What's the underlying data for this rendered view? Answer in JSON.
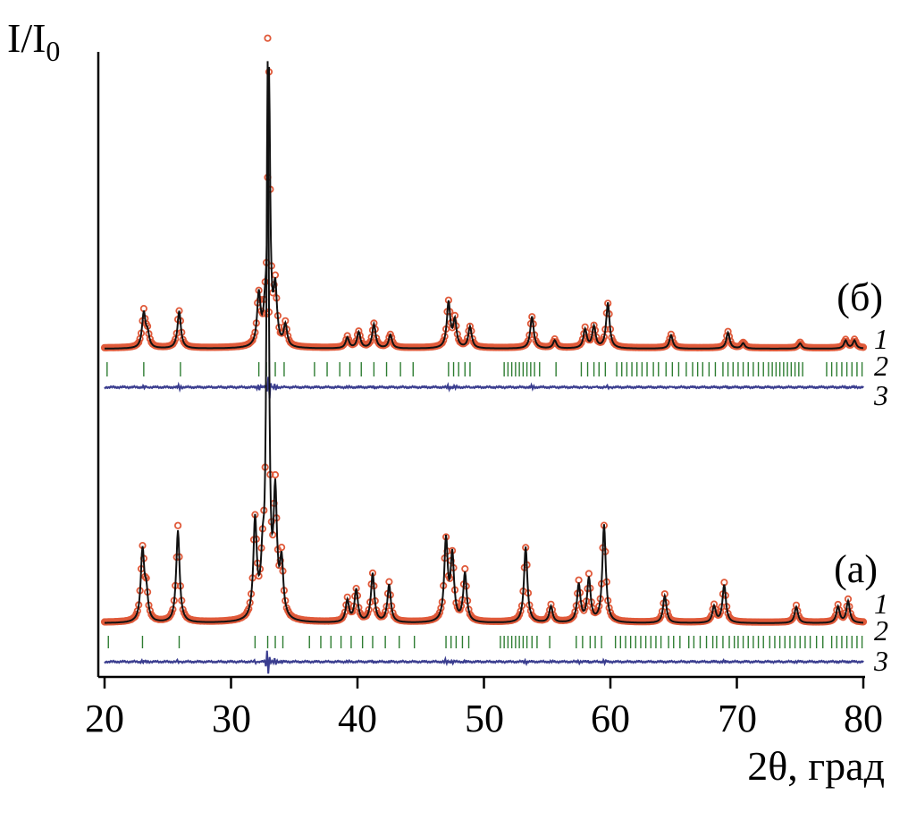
{
  "chart_data": {
    "type": "line",
    "xlabel": "2θ, град",
    "ylabel_main": "I/I",
    "ylabel_sub": "0",
    "xlim": [
      20,
      80
    ],
    "xticks": [
      "20",
      "30",
      "40",
      "50",
      "60",
      "70",
      "80"
    ],
    "xtick_values": [
      20,
      30,
      40,
      50,
      60,
      70,
      80
    ],
    "curve_labels": [
      "1",
      "2",
      "3"
    ],
    "colors": {
      "observed": "#e05a3a",
      "calculated": "#111111",
      "bragg": "#2e7d32",
      "difference": "#3a3d8f",
      "axis": "#000000"
    },
    "panels": [
      {
        "label": "(а)",
        "peaks": [
          {
            "x": 23.0,
            "h": 0.13
          },
          {
            "x": 23.3,
            "h": 0.05
          },
          {
            "x": 25.8,
            "h": 0.17
          },
          {
            "x": 31.9,
            "h": 0.18
          },
          {
            "x": 32.5,
            "h": 0.09
          },
          {
            "x": 32.9,
            "h": 1.0
          },
          {
            "x": 33.5,
            "h": 0.22
          },
          {
            "x": 34.0,
            "h": 0.1
          },
          {
            "x": 39.2,
            "h": 0.04
          },
          {
            "x": 39.9,
            "h": 0.06
          },
          {
            "x": 41.2,
            "h": 0.09
          },
          {
            "x": 42.5,
            "h": 0.07
          },
          {
            "x": 47.0,
            "h": 0.15
          },
          {
            "x": 47.5,
            "h": 0.12
          },
          {
            "x": 48.5,
            "h": 0.09
          },
          {
            "x": 53.3,
            "h": 0.14
          },
          {
            "x": 55.3,
            "h": 0.03
          },
          {
            "x": 57.5,
            "h": 0.07
          },
          {
            "x": 58.3,
            "h": 0.08
          },
          {
            "x": 59.5,
            "h": 0.18
          },
          {
            "x": 64.3,
            "h": 0.05
          },
          {
            "x": 68.2,
            "h": 0.03
          },
          {
            "x": 69.0,
            "h": 0.07
          },
          {
            "x": 74.7,
            "h": 0.03
          },
          {
            "x": 78.0,
            "h": 0.03
          },
          {
            "x": 78.8,
            "h": 0.04
          }
        ],
        "bragg_positions": [
          20.3,
          23.0,
          25.9,
          31.9,
          32.9,
          33.5,
          34.1,
          36.2,
          37.1,
          37.9,
          38.7,
          39.5,
          40.4,
          41.2,
          42.2,
          43.3,
          44.5,
          47.0,
          47.4,
          47.8,
          48.3,
          48.8,
          51.3,
          51.6,
          51.9,
          52.2,
          52.5,
          52.8,
          53.1,
          53.4,
          53.8,
          54.2,
          55.2,
          57.3,
          57.8,
          58.4,
          58.8,
          59.3,
          60.4,
          60.8,
          61.2,
          61.6,
          62.0,
          62.4,
          62.8,
          63.2,
          63.6,
          64.0,
          64.6,
          65.0,
          65.5,
          66.2,
          66.6,
          67.1,
          67.6,
          68.1,
          68.4,
          68.9,
          69.4,
          69.8,
          70.1,
          70.5,
          70.9,
          71.3,
          71.7,
          72.1,
          72.6,
          73.0,
          73.4,
          73.8,
          74.2,
          74.6,
          75.0,
          75.4,
          75.8,
          76.3,
          76.8,
          77.5,
          77.9,
          78.3,
          78.7,
          79.1,
          79.5,
          79.9
        ]
      },
      {
        "label": "(б)",
        "peaks": [
          {
            "x": 23.1,
            "h": 0.13
          },
          {
            "x": 23.4,
            "h": 0.05
          },
          {
            "x": 25.9,
            "h": 0.14
          },
          {
            "x": 32.2,
            "h": 0.19
          },
          {
            "x": 32.7,
            "h": 0.1
          },
          {
            "x": 33.0,
            "h": 1.0
          },
          {
            "x": 33.5,
            "h": 0.21
          },
          {
            "x": 34.3,
            "h": 0.08
          },
          {
            "x": 39.2,
            "h": 0.04
          },
          {
            "x": 40.1,
            "h": 0.06
          },
          {
            "x": 41.3,
            "h": 0.09
          },
          {
            "x": 42.6,
            "h": 0.05
          },
          {
            "x": 47.2,
            "h": 0.17
          },
          {
            "x": 47.7,
            "h": 0.1
          },
          {
            "x": 48.9,
            "h": 0.08
          },
          {
            "x": 53.8,
            "h": 0.12
          },
          {
            "x": 55.6,
            "h": 0.03
          },
          {
            "x": 58.0,
            "h": 0.07
          },
          {
            "x": 58.7,
            "h": 0.08
          },
          {
            "x": 59.8,
            "h": 0.17
          },
          {
            "x": 64.8,
            "h": 0.05
          },
          {
            "x": 69.3,
            "h": 0.06
          },
          {
            "x": 70.5,
            "h": 0.02
          },
          {
            "x": 75.0,
            "h": 0.02
          },
          {
            "x": 78.6,
            "h": 0.03
          },
          {
            "x": 79.3,
            "h": 0.03
          }
        ],
        "bragg_positions": [
          20.2,
          23.1,
          26.0,
          32.2,
          32.8,
          33.5,
          34.2,
          36.6,
          37.6,
          38.6,
          39.4,
          40.3,
          41.3,
          42.3,
          43.4,
          44.4,
          47.2,
          47.6,
          48.0,
          48.5,
          48.9,
          51.6,
          51.9,
          52.2,
          52.5,
          52.8,
          53.1,
          53.4,
          53.7,
          54.0,
          54.4,
          55.7,
          57.7,
          58.2,
          58.7,
          59.1,
          59.6,
          60.5,
          60.9,
          61.3,
          61.7,
          62.1,
          62.5,
          62.9,
          63.4,
          63.8,
          64.4,
          64.9,
          65.4,
          66.0,
          66.5,
          66.9,
          67.3,
          67.8,
          68.3,
          68.9,
          69.3,
          69.7,
          70.1,
          70.5,
          70.9,
          71.3,
          71.7,
          72.1,
          72.5,
          72.8,
          73.1,
          73.4,
          73.7,
          74.0,
          74.3,
          74.6,
          74.9,
          75.2,
          77.1,
          77.5,
          77.9,
          78.3,
          78.7,
          79.1,
          79.5,
          79.9
        ]
      }
    ]
  }
}
